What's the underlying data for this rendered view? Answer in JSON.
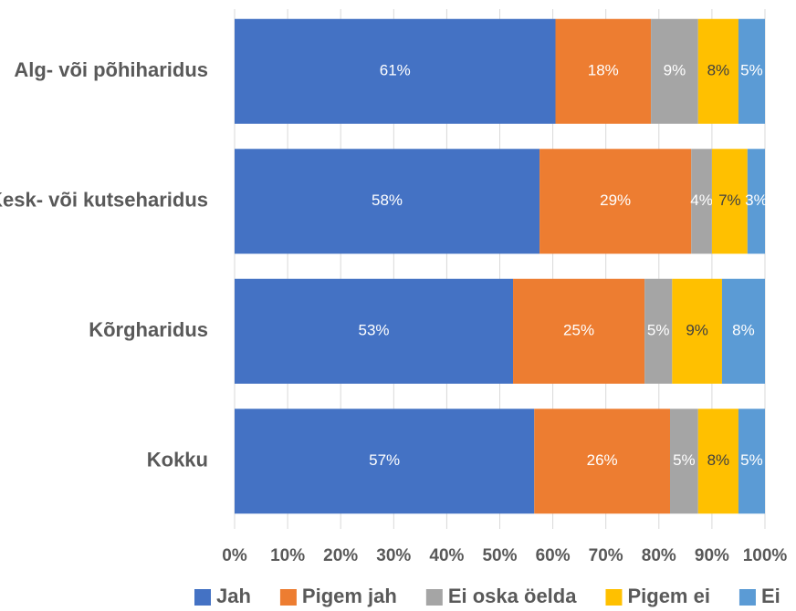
{
  "chart_data": {
    "type": "stacked_barh",
    "categories": [
      "Alg- või põhiharidus",
      "Kesk- või kutseharidus",
      "Kõrgharidus",
      "Kokku"
    ],
    "series": [
      {
        "name": "Jah",
        "color": "#4472c4",
        "values": [
          60.5,
          57.5,
          52.5,
          56.5
        ],
        "value_labels": [
          "61%",
          "58%",
          "53%",
          "57%"
        ]
      },
      {
        "name": "Pigem jah",
        "color": "#ed7d31",
        "values": [
          18.0,
          28.6,
          24.8,
          25.6
        ],
        "value_labels": [
          "18%",
          "29%",
          "25%",
          "26%"
        ]
      },
      {
        "name": "Ei oska öelda",
        "color": "#a5a5a5",
        "values": [
          8.9,
          3.9,
          5.2,
          5.3
        ],
        "value_labels": [
          "9%",
          "4%",
          "5%",
          "5%"
        ]
      },
      {
        "name": "Pigem ei",
        "color": "#ffc000",
        "values": [
          7.6,
          6.7,
          9.4,
          7.6
        ],
        "value_labels": [
          "8%",
          "7%",
          "9%",
          "8%"
        ]
      },
      {
        "name": "Ei",
        "color": "#5b9bd5",
        "values": [
          5.0,
          3.3,
          8.1,
          5.0
        ],
        "value_labels": [
          "5%",
          "3%",
          "8%",
          "5%"
        ]
      }
    ],
    "xlim": [
      0,
      100
    ],
    "xticks": [
      {
        "value": 0,
        "label": "0%"
      },
      {
        "value": 10,
        "label": "10%"
      },
      {
        "value": 20,
        "label": "20%"
      },
      {
        "value": 30,
        "label": "30%"
      },
      {
        "value": 40,
        "label": "40%"
      },
      {
        "value": 50,
        "label": "50%"
      },
      {
        "value": 60,
        "label": "60%"
      },
      {
        "value": 70,
        "label": "70%"
      },
      {
        "value": 80,
        "label": "80%"
      },
      {
        "value": 90,
        "label": "90%"
      },
      {
        "value": 100,
        "label": "100%"
      }
    ],
    "grid": true,
    "legend": "bottom"
  }
}
